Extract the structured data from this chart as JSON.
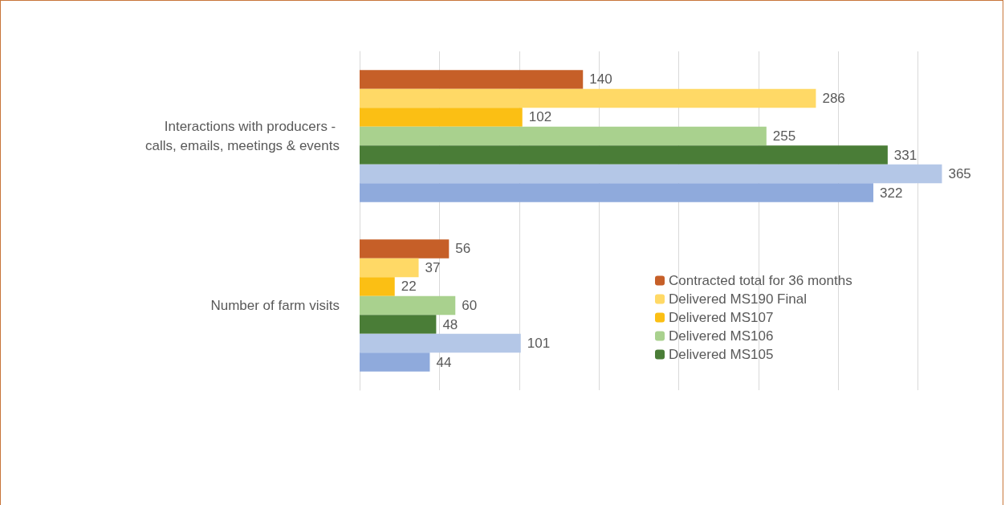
{
  "chart_data": {
    "type": "bar",
    "orientation": "horizontal",
    "categories": [
      "Interactions with producers - calls, emails, meetings & events",
      "Number of farm visits"
    ],
    "series": [
      {
        "name": "Contracted total for 36 months",
        "color": "#c65f28",
        "values": [
          140,
          56
        ]
      },
      {
        "name": "Delivered MS190 Final",
        "color": "#ffd966",
        "values": [
          286,
          37
        ]
      },
      {
        "name": "Delivered MS107",
        "color": "#fbbf14",
        "values": [
          102,
          22
        ]
      },
      {
        "name": "Delivered MS106",
        "color": "#a9d18e",
        "values": [
          255,
          60
        ]
      },
      {
        "name": "Delivered MS105",
        "color": "#4a7d37",
        "values": [
          331,
          48
        ]
      },
      {
        "color": "#b4c7e7",
        "values": [
          365,
          101
        ]
      },
      {
        "color": "#8faadc",
        "values": [
          322,
          44
        ]
      }
    ],
    "xticks": [
      {
        "value": 0,
        "label": null
      },
      {
        "value": 50,
        "label": null
      },
      {
        "value": 100,
        "label": null
      },
      {
        "value": 150,
        "label": null
      },
      {
        "value": 200,
        "label": null
      },
      {
        "value": 250,
        "label": null
      },
      {
        "value": 300,
        "label": null
      },
      {
        "value": 350,
        "label": null
      }
    ],
    "tick_labels": "y",
    "grid": "x",
    "legend": "bottom right",
    "data_labels": true
  }
}
